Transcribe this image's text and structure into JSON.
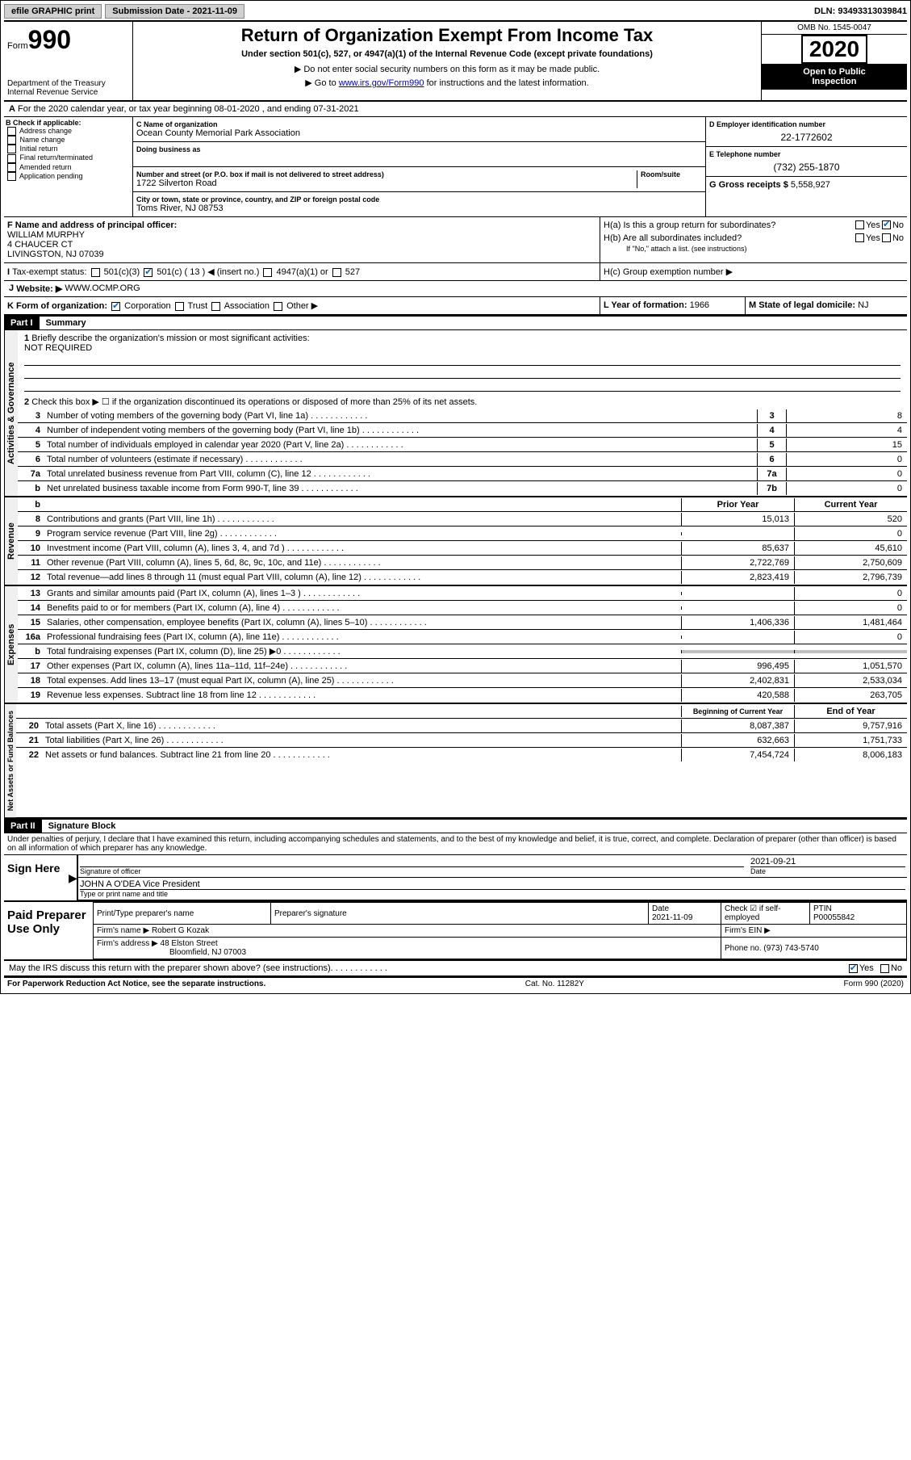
{
  "topbar": {
    "efile": "efile GRAPHIC print",
    "submission_label": "Submission Date - 2021-11-09",
    "dln": "DLN: 93493313039841"
  },
  "header": {
    "form_prefix": "Form",
    "form_number": "990",
    "dept": "Department of the Treasury",
    "irs": "Internal Revenue Service",
    "title": "Return of Organization Exempt From Income Tax",
    "subtitle": "Under section 501(c), 527, or 4947(a)(1) of the Internal Revenue Code (except private foundations)",
    "note1": "▶ Do not enter social security numbers on this form as it may be made public.",
    "note2_pre": "▶ Go to ",
    "note2_link": "www.irs.gov/Form990",
    "note2_post": " for instructions and the latest information.",
    "omb": "OMB No. 1545-0047",
    "year": "2020",
    "public1": "Open to Public",
    "public2": "Inspection"
  },
  "lineA": "For the 2020 calendar year, or tax year beginning 08-01-2020   , and ending 07-31-2021",
  "sectionB": {
    "title": "B Check if applicable:",
    "items": [
      "Address change",
      "Name change",
      "Initial return",
      "Final return/terminated",
      "Amended return",
      "Application pending"
    ]
  },
  "sectionC": {
    "name_label": "C Name of organization",
    "name": "Ocean County Memorial Park Association",
    "dba_label": "Doing business as",
    "dba": "",
    "addr_label": "Number and street (or P.O. box if mail is not delivered to street address)",
    "room_label": "Room/suite",
    "addr": "1722 Silverton Road",
    "city_label": "City or town, state or province, country, and ZIP or foreign postal code",
    "city": "Toms River, NJ  08753"
  },
  "sectionD": {
    "label": "D Employer identification number",
    "value": "22-1772602"
  },
  "sectionE": {
    "label": "E Telephone number",
    "value": "(732) 255-1870"
  },
  "sectionG": {
    "label": "G Gross receipts $",
    "value": "5,558,927"
  },
  "sectionF": {
    "label": "F Name and address of principal officer:",
    "name": "WILLIAM MURPHY",
    "addr1": "4 CHAUCER CT",
    "addr2": "LIVINGSTON, NJ  07039"
  },
  "sectionH": {
    "a": "H(a)  Is this a group return for subordinates?",
    "b": "H(b)  Are all subordinates included?",
    "b_note": "If \"No,\" attach a list. (see instructions)",
    "c": "H(c)  Group exemption number ▶"
  },
  "lineI": {
    "label": "Tax-exempt status:",
    "opts": [
      "501(c)(3)",
      "501(c) ( 13 ) ◀ (insert no.)",
      "4947(a)(1) or",
      "527"
    ]
  },
  "lineJ": {
    "label": "Website: ▶",
    "value": "WWW.OCMP.ORG"
  },
  "lineK": {
    "label": "K Form of organization:",
    "opts": [
      "Corporation",
      "Trust",
      "Association",
      "Other ▶"
    ]
  },
  "lineL": {
    "label": "L Year of formation:",
    "value": "1966"
  },
  "lineM": {
    "label": "M State of legal domicile:",
    "value": "NJ"
  },
  "part1": {
    "header": "Part I",
    "title": "Summary"
  },
  "summary": {
    "q1": "Briefly describe the organization's mission or most significant activities:",
    "q1_val": "NOT REQUIRED",
    "q2": "Check this box ▶ ☐  if the organization discontinued its operations or disposed of more than 25% of its net assets.",
    "rows_gov": [
      {
        "n": "3",
        "t": "Number of voting members of the governing body (Part VI, line 1a)",
        "box": "3",
        "v": "8"
      },
      {
        "n": "4",
        "t": "Number of independent voting members of the governing body (Part VI, line 1b)",
        "box": "4",
        "v": "4"
      },
      {
        "n": "5",
        "t": "Total number of individuals employed in calendar year 2020 (Part V, line 2a)",
        "box": "5",
        "v": "15"
      },
      {
        "n": "6",
        "t": "Total number of volunteers (estimate if necessary)",
        "box": "6",
        "v": "0"
      },
      {
        "n": "7a",
        "t": "Total unrelated business revenue from Part VIII, column (C), line 12",
        "box": "7a",
        "v": "0"
      },
      {
        "n": "b",
        "t": "Net unrelated business taxable income from Form 990-T, line 39",
        "box": "7b",
        "v": "0"
      }
    ],
    "rev_header": {
      "b": "b",
      "prior": "Prior Year",
      "current": "Current Year"
    },
    "rows_rev": [
      {
        "n": "8",
        "t": "Contributions and grants (Part VIII, line 1h)",
        "p": "15,013",
        "c": "520"
      },
      {
        "n": "9",
        "t": "Program service revenue (Part VIII, line 2g)",
        "p": "",
        "c": "0"
      },
      {
        "n": "10",
        "t": "Investment income (Part VIII, column (A), lines 3, 4, and 7d )",
        "p": "85,637",
        "c": "45,610"
      },
      {
        "n": "11",
        "t": "Other revenue (Part VIII, column (A), lines 5, 6d, 8c, 9c, 10c, and 11e)",
        "p": "2,722,769",
        "c": "2,750,609"
      },
      {
        "n": "12",
        "t": "Total revenue—add lines 8 through 11 (must equal Part VIII, column (A), line 12)",
        "p": "2,823,419",
        "c": "2,796,739"
      }
    ],
    "rows_exp": [
      {
        "n": "13",
        "t": "Grants and similar amounts paid (Part IX, column (A), lines 1–3 )",
        "p": "",
        "c": "0"
      },
      {
        "n": "14",
        "t": "Benefits paid to or for members (Part IX, column (A), line 4)",
        "p": "",
        "c": "0"
      },
      {
        "n": "15",
        "t": "Salaries, other compensation, employee benefits (Part IX, column (A), lines 5–10)",
        "p": "1,406,336",
        "c": "1,481,464"
      },
      {
        "n": "16a",
        "t": "Professional fundraising fees (Part IX, column (A), line 11e)",
        "p": "",
        "c": "0"
      },
      {
        "n": "b",
        "t": "Total fundraising expenses (Part IX, column (D), line 25) ▶0",
        "p": "__shade__",
        "c": "__shade__"
      },
      {
        "n": "17",
        "t": "Other expenses (Part IX, column (A), lines 11a–11d, 11f–24e)",
        "p": "996,495",
        "c": "1,051,570"
      },
      {
        "n": "18",
        "t": "Total expenses. Add lines 13–17 (must equal Part IX, column (A), line 25)",
        "p": "2,402,831",
        "c": "2,533,034"
      },
      {
        "n": "19",
        "t": "Revenue less expenses. Subtract line 18 from line 12",
        "p": "420,588",
        "c": "263,705"
      }
    ],
    "net_header": {
      "prior": "Beginning of Current Year",
      "current": "End of Year"
    },
    "rows_net": [
      {
        "n": "20",
        "t": "Total assets (Part X, line 16)",
        "p": "8,087,387",
        "c": "9,757,916"
      },
      {
        "n": "21",
        "t": "Total liabilities (Part X, line 26)",
        "p": "632,663",
        "c": "1,751,733"
      },
      {
        "n": "22",
        "t": "Net assets or fund balances. Subtract line 21 from line 20",
        "p": "7,454,724",
        "c": "8,006,183"
      }
    ]
  },
  "part2": {
    "header": "Part II",
    "title": "Signature Block"
  },
  "sig": {
    "perjury": "Under penalties of perjury, I declare that I have examined this return, including accompanying schedules and statements, and to the best of my knowledge and belief, it is true, correct, and complete. Declaration of preparer (other than officer) is based on all information of which preparer has any knowledge.",
    "sign_here": "Sign Here",
    "sig_officer": "Signature of officer",
    "date_label": "Date",
    "date_val": "2021-09-21",
    "name_title": "JOHN A O'DEA  Vice President",
    "type_label": "Type or print name and title"
  },
  "prep": {
    "title": "Paid Preparer Use Only",
    "h_name": "Print/Type preparer's name",
    "h_sig": "Preparer's signature",
    "h_date": "Date",
    "date_val": "2021-11-09",
    "h_check": "Check ☑ if self-employed",
    "h_ptin": "PTIN",
    "ptin": "P00055842",
    "firm_name_l": "Firm's name      ▶",
    "firm_name": "Robert G Kozak",
    "firm_ein_l": "Firm's EIN ▶",
    "firm_addr_l": "Firm's address ▶",
    "firm_addr1": "48 Elston Street",
    "firm_addr2": "Bloomfield, NJ  07003",
    "phone_l": "Phone no.",
    "phone": "(973) 743-5740"
  },
  "discuss": "May the IRS discuss this return with the preparer shown above? (see instructions)",
  "footer": {
    "left": "For Paperwork Reduction Act Notice, see the separate instructions.",
    "center": "Cat. No. 11282Y",
    "right": "Form 990 (2020)"
  },
  "labels": {
    "vert_gov": "Activities & Governance",
    "vert_rev": "Revenue",
    "vert_exp": "Expenses",
    "vert_net": "Net Assets or Fund Balances",
    "yes": "Yes",
    "no": "No"
  }
}
